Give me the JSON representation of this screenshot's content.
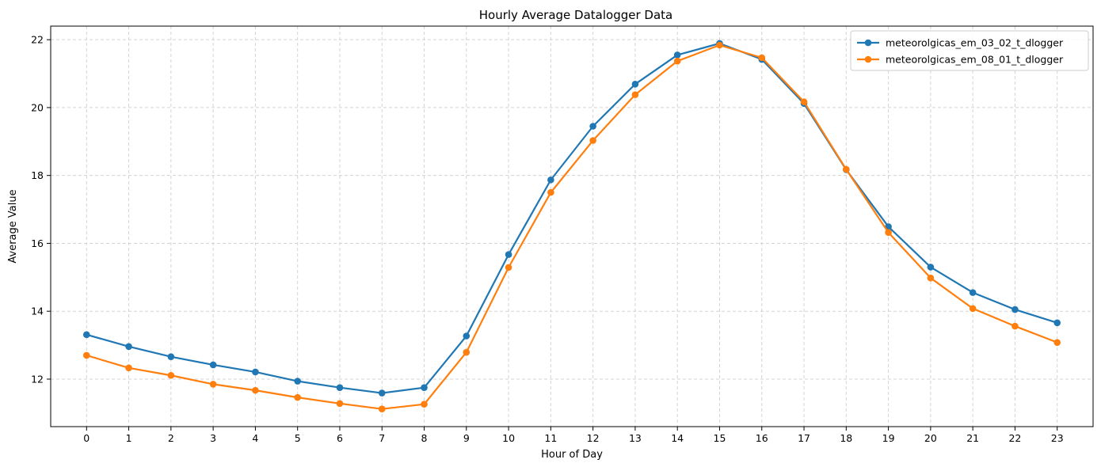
{
  "chart_data": {
    "type": "line",
    "title": "Hourly Average Datalogger Data",
    "xlabel": "Hour of Day",
    "ylabel": "Average Value",
    "x": [
      0,
      1,
      2,
      3,
      4,
      5,
      6,
      7,
      8,
      9,
      10,
      11,
      12,
      13,
      14,
      15,
      16,
      17,
      18,
      19,
      20,
      21,
      22,
      23
    ],
    "xlim": [
      -0.85,
      23.85
    ],
    "ylim": [
      10.6,
      22.4
    ],
    "yticks": [
      12,
      14,
      16,
      18,
      20,
      22
    ],
    "grid": true,
    "legend_position": "top-right",
    "series": [
      {
        "name": "meteorolgicas_em_03_02_t_dlogger",
        "color": "#1f77b4",
        "values": [
          13.31,
          12.96,
          12.66,
          12.42,
          12.21,
          11.94,
          11.75,
          11.59,
          11.75,
          13.27,
          15.67,
          17.87,
          19.45,
          20.69,
          21.55,
          21.89,
          21.42,
          20.12,
          18.17,
          16.49,
          15.3,
          14.55,
          14.05,
          13.66
        ]
      },
      {
        "name": "meteorolgicas_em_08_01_t_dlogger",
        "color": "#ff7f0e",
        "values": [
          12.7,
          12.33,
          12.11,
          11.85,
          11.67,
          11.46,
          11.28,
          11.12,
          11.26,
          12.79,
          15.29,
          17.5,
          19.03,
          20.38,
          21.37,
          21.84,
          21.47,
          20.17,
          18.18,
          16.32,
          14.98,
          14.08,
          13.56,
          13.08
        ]
      }
    ]
  }
}
